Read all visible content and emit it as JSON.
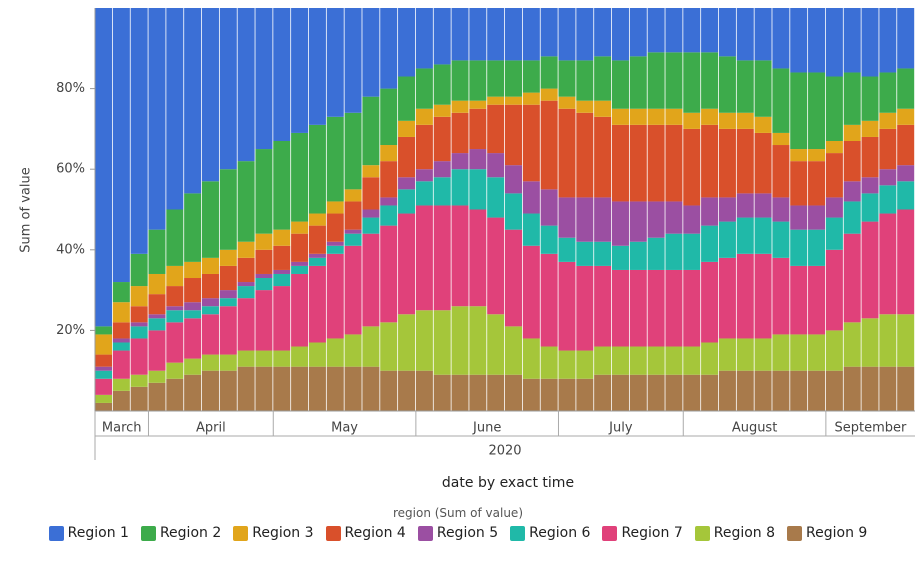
{
  "chart_data": {
    "type": "stacked-bar-100",
    "ylabel": "Sum of value",
    "xlabel": "date by exact time",
    "x_group_label": "2020",
    "legend_title": "region (Sum of value)",
    "ylim": [
      0,
      100
    ],
    "yticks": [
      {
        "value": 20,
        "label": "20%"
      },
      {
        "value": 40,
        "label": "40%"
      },
      {
        "value": 60,
        "label": "60%"
      },
      {
        "value": 80,
        "label": "80%"
      }
    ],
    "categories": [
      "March",
      null,
      null,
      "April",
      null,
      null,
      null,
      null,
      null,
      null,
      "May",
      null,
      null,
      null,
      null,
      null,
      null,
      null,
      "June",
      null,
      null,
      null,
      null,
      null,
      null,
      null,
      "July",
      null,
      null,
      null,
      null,
      null,
      null,
      "August",
      null,
      null,
      null,
      null,
      null,
      null,
      null,
      "September",
      null,
      null,
      null,
      null
    ],
    "series": [
      {
        "name": "Region 1",
        "color": "#3b6fd6",
        "values": [
          79,
          68,
          61,
          55,
          50,
          46,
          43,
          40,
          38,
          35,
          33,
          31,
          29,
          27,
          26,
          22,
          20,
          17,
          15,
          14,
          13,
          13,
          13,
          13,
          13,
          12,
          13,
          13,
          12,
          13,
          12,
          11,
          11,
          11,
          11,
          12,
          13,
          13,
          15,
          16,
          16,
          17,
          16,
          17,
          16,
          15
        ]
      },
      {
        "name": "Region 2",
        "color": "#3dab4b",
        "values": [
          2,
          5,
          8,
          11,
          14,
          17,
          19,
          20,
          20,
          21,
          22,
          22,
          22,
          21,
          19,
          17,
          14,
          11,
          10,
          10,
          10,
          10,
          9,
          9,
          8,
          8,
          9,
          10,
          11,
          12,
          13,
          14,
          14,
          15,
          14,
          14,
          13,
          14,
          16,
          19,
          19,
          16,
          13,
          11,
          10,
          10
        ]
      },
      {
        "name": "Region 3",
        "color": "#e1a51b",
        "values": [
          5,
          5,
          5,
          5,
          5,
          4,
          4,
          4,
          4,
          4,
          4,
          3,
          3,
          3,
          3,
          3,
          4,
          4,
          4,
          3,
          3,
          2,
          2,
          2,
          3,
          3,
          3,
          3,
          4,
          4,
          4,
          4,
          4,
          4,
          4,
          4,
          4,
          4,
          3,
          3,
          3,
          3,
          4,
          4,
          4,
          4
        ]
      },
      {
        "name": "Region 4",
        "color": "#d9502b",
        "values": [
          3,
          4,
          4,
          5,
          5,
          6,
          6,
          6,
          6,
          6,
          6,
          7,
          7,
          7,
          7,
          8,
          9,
          10,
          11,
          11,
          10,
          10,
          12,
          15,
          19,
          22,
          22,
          21,
          20,
          19,
          19,
          19,
          19,
          19,
          18,
          17,
          16,
          15,
          13,
          11,
          11,
          11,
          10,
          10,
          10,
          10
        ]
      },
      {
        "name": "Region 5",
        "color": "#9b4fa2",
        "values": [
          1,
          1,
          1,
          1,
          1,
          2,
          2,
          2,
          1,
          1,
          1,
          1,
          1,
          1,
          1,
          2,
          2,
          3,
          3,
          4,
          4,
          5,
          6,
          7,
          8,
          9,
          10,
          11,
          11,
          11,
          10,
          9,
          8,
          7,
          7,
          6,
          6,
          6,
          6,
          6,
          6,
          5,
          5,
          4,
          4,
          4
        ]
      },
      {
        "name": "Region 6",
        "color": "#20b9a8",
        "values": [
          2,
          2,
          3,
          3,
          3,
          2,
          2,
          2,
          3,
          3,
          3,
          2,
          2,
          2,
          3,
          4,
          5,
          6,
          6,
          7,
          9,
          10,
          10,
          9,
          8,
          7,
          6,
          6,
          6,
          6,
          7,
          8,
          9,
          9,
          9,
          9,
          9,
          9,
          9,
          9,
          9,
          8,
          8,
          7,
          7,
          7
        ]
      },
      {
        "name": "Region 7",
        "color": "#e0417a",
        "values": [
          4,
          7,
          9,
          10,
          10,
          10,
          10,
          12,
          13,
          15,
          16,
          18,
          19,
          21,
          22,
          23,
          24,
          25,
          26,
          26,
          25,
          24,
          24,
          24,
          23,
          23,
          22,
          21,
          20,
          19,
          19,
          19,
          19,
          19,
          20,
          20,
          21,
          21,
          19,
          17,
          17,
          20,
          22,
          24,
          25,
          26
        ]
      },
      {
        "name": "Region 8",
        "color": "#a5c63a",
        "values": [
          2,
          3,
          3,
          3,
          4,
          4,
          4,
          4,
          4,
          4,
          4,
          5,
          6,
          7,
          8,
          10,
          12,
          14,
          15,
          16,
          17,
          17,
          15,
          12,
          10,
          8,
          7,
          7,
          7,
          7,
          7,
          7,
          7,
          7,
          8,
          8,
          8,
          8,
          9,
          9,
          9,
          10,
          11,
          12,
          13,
          13
        ]
      },
      {
        "name": "Region 9",
        "color": "#a87a4b",
        "values": [
          2,
          5,
          6,
          7,
          8,
          9,
          10,
          10,
          11,
          11,
          11,
          11,
          11,
          11,
          11,
          11,
          10,
          10,
          10,
          9,
          9,
          9,
          9,
          9,
          8,
          8,
          8,
          8,
          9,
          9,
          9,
          9,
          9,
          9,
          9,
          10,
          10,
          10,
          10,
          10,
          10,
          10,
          11,
          11,
          11,
          11
        ]
      }
    ]
  }
}
